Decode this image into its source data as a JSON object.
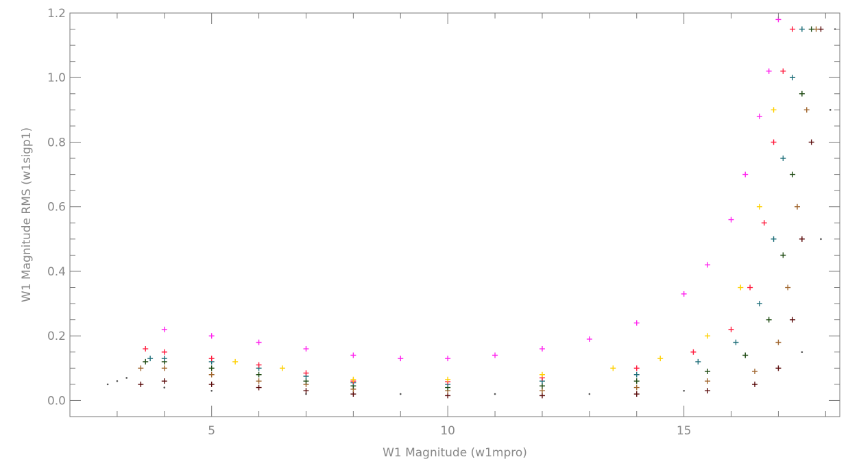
{
  "chart_data": {
    "type": "scatter",
    "title": "",
    "xlabel": "W1 Magnitude (w1mpro)",
    "ylabel": "W1 Magnitude RMS (w1sigp1)",
    "xlim": [
      2.0,
      18.3
    ],
    "ylim": [
      -0.05,
      1.2
    ],
    "x_ticks": [
      5,
      10,
      15
    ],
    "x_tick_labels": [
      "5",
      "10",
      "15"
    ],
    "y_ticks": [
      0.0,
      0.2,
      0.4,
      0.6,
      0.8,
      1.0,
      1.2
    ],
    "y_tick_labels": [
      "0.0",
      "0.2",
      "0.4",
      "0.6",
      "0.8",
      "1.0",
      "1.2"
    ],
    "grid": false,
    "legend": "none",
    "series": [
      {
        "color": "#555555",
        "marker": "dot",
        "x": [
          2.8,
          3.0,
          3.2,
          3.5,
          4.0,
          5.0,
          7.0,
          9.0,
          11.0,
          13.0,
          15.0,
          16.5,
          17.5,
          17.9,
          18.1,
          18.2
        ],
        "y": [
          0.05,
          0.06,
          0.07,
          0.05,
          0.04,
          0.03,
          0.02,
          0.02,
          0.02,
          0.02,
          0.03,
          0.05,
          0.15,
          0.5,
          0.9,
          1.15
        ]
      },
      {
        "color": "#5a0a0a",
        "marker": "plus",
        "x": [
          3.5,
          4.0,
          5.0,
          6.0,
          7.0,
          8.0,
          10.0,
          12.0,
          14.0,
          15.5,
          16.5,
          17.0,
          17.3,
          17.5,
          17.7,
          17.9
        ],
        "y": [
          0.05,
          0.06,
          0.05,
          0.04,
          0.03,
          0.02,
          0.015,
          0.015,
          0.02,
          0.03,
          0.05,
          0.1,
          0.25,
          0.5,
          0.8,
          1.15
        ]
      },
      {
        "color": "#a0652d",
        "marker": "plus",
        "x": [
          3.5,
          4.0,
          5.0,
          6.0,
          7.0,
          8.0,
          10.0,
          12.0,
          14.0,
          15.5,
          16.5,
          17.0,
          17.2,
          17.4,
          17.6,
          17.8
        ],
        "y": [
          0.1,
          0.1,
          0.08,
          0.06,
          0.05,
          0.035,
          0.03,
          0.03,
          0.04,
          0.06,
          0.09,
          0.18,
          0.35,
          0.6,
          0.9,
          1.15
        ]
      },
      {
        "color": "#1e4a12",
        "marker": "plus",
        "x": [
          3.6,
          4.0,
          5.0,
          6.0,
          7.0,
          8.0,
          10.0,
          12.0,
          14.0,
          15.5,
          16.3,
          16.8,
          17.1,
          17.3,
          17.5,
          17.7
        ],
        "y": [
          0.12,
          0.12,
          0.1,
          0.08,
          0.06,
          0.045,
          0.04,
          0.045,
          0.06,
          0.09,
          0.14,
          0.25,
          0.45,
          0.7,
          0.95,
          1.15
        ]
      },
      {
        "color": "#1f6f7a",
        "marker": "plus",
        "x": [
          3.7,
          4.0,
          5.0,
          6.0,
          7.0,
          8.0,
          10.0,
          12.0,
          14.0,
          15.3,
          16.1,
          16.6,
          16.9,
          17.1,
          17.3,
          17.5
        ],
        "y": [
          0.13,
          0.13,
          0.12,
          0.1,
          0.075,
          0.055,
          0.05,
          0.06,
          0.08,
          0.12,
          0.18,
          0.3,
          0.5,
          0.75,
          1.0,
          1.15
        ]
      },
      {
        "color": "#ff1a3c",
        "marker": "plus",
        "x": [
          3.6,
          4.0,
          5.0,
          6.0,
          7.0,
          8.0,
          10.0,
          12.0,
          14.0,
          15.2,
          16.0,
          16.4,
          16.7,
          16.9,
          17.1,
          17.3
        ],
        "y": [
          0.16,
          0.15,
          0.13,
          0.11,
          0.085,
          0.06,
          0.058,
          0.07,
          0.1,
          0.15,
          0.22,
          0.35,
          0.55,
          0.8,
          1.02,
          1.15
        ]
      },
      {
        "color": "#ffd000",
        "marker": "plus",
        "x": [
          5.5,
          6.5,
          8.0,
          10.0,
          12.0,
          13.5,
          14.5,
          15.5,
          16.2,
          16.6,
          16.9
        ],
        "y": [
          0.12,
          0.1,
          0.065,
          0.065,
          0.08,
          0.1,
          0.13,
          0.2,
          0.35,
          0.6,
          0.9
        ]
      },
      {
        "color": "#ff22ee",
        "marker": "plus",
        "x": [
          4.0,
          5.0,
          6.0,
          7.0,
          8.0,
          9.0,
          10.0,
          11.0,
          12.0,
          13.0,
          14.0,
          15.0,
          15.5,
          16.0,
          16.3,
          16.6,
          16.8,
          17.0
        ],
        "y": [
          0.22,
          0.2,
          0.18,
          0.16,
          0.14,
          0.13,
          0.13,
          0.14,
          0.16,
          0.19,
          0.24,
          0.33,
          0.42,
          0.56,
          0.7,
          0.88,
          1.02,
          1.18
        ]
      }
    ]
  }
}
